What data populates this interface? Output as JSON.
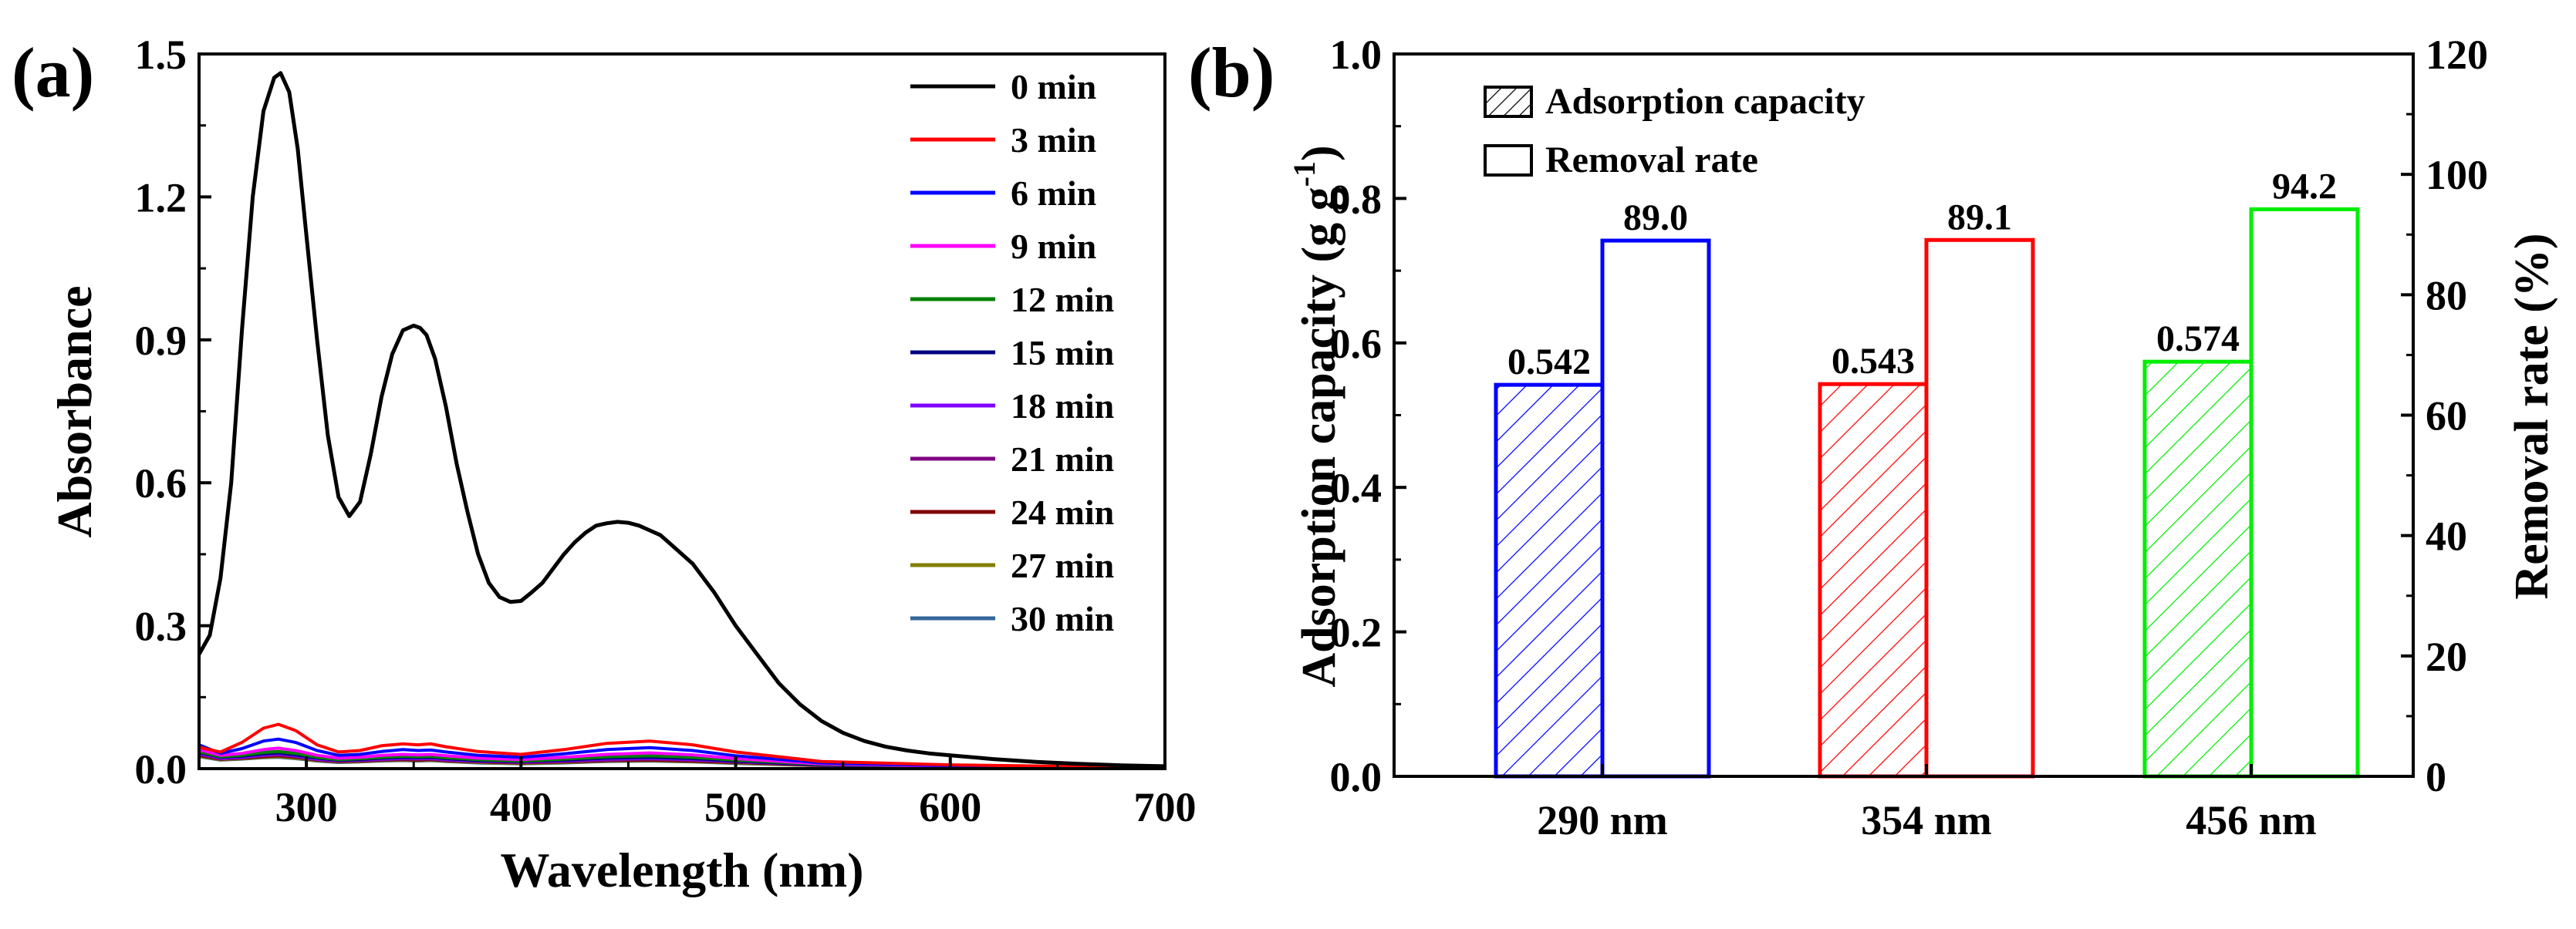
{
  "chart_data": [
    {
      "panel_label": "(a)",
      "type": "line",
      "title": "",
      "xlabel": "Wavelength (nm)",
      "ylabel": "Absorbance",
      "xlim": [
        250,
        700
      ],
      "ylim": [
        0,
        1.5
      ],
      "xticks": [
        "300",
        "400",
        "500",
        "600",
        "700"
      ],
      "xtick_values": [
        300,
        400,
        500,
        600,
        700
      ],
      "yticks": [
        "0.0",
        "0.3",
        "0.6",
        "0.9",
        "1.2",
        "1.5"
      ],
      "ytick_values": [
        0,
        0.3,
        0.6,
        0.9,
        1.2,
        1.5
      ],
      "grid": false,
      "legend_position": "top-right",
      "series": [
        {
          "name": "0 min",
          "color": "#000000",
          "x": [
            250,
            255,
            260,
            265,
            270,
            275,
            280,
            285,
            288,
            292,
            296,
            300,
            305,
            310,
            315,
            320,
            325,
            330,
            335,
            340,
            345,
            350,
            353,
            356,
            360,
            365,
            370,
            375,
            380,
            385,
            390,
            395,
            400,
            405,
            410,
            415,
            420,
            425,
            430,
            435,
            440,
            445,
            450,
            455,
            460,
            465,
            470,
            475,
            480,
            490,
            500,
            510,
            520,
            530,
            540,
            550,
            560,
            570,
            580,
            590,
            600,
            620,
            640,
            660,
            680,
            700
          ],
          "y": [
            0.24,
            0.28,
            0.4,
            0.6,
            0.92,
            1.2,
            1.38,
            1.45,
            1.46,
            1.42,
            1.3,
            1.12,
            0.9,
            0.7,
            0.57,
            0.53,
            0.56,
            0.66,
            0.78,
            0.87,
            0.92,
            0.93,
            0.925,
            0.91,
            0.86,
            0.76,
            0.64,
            0.54,
            0.45,
            0.39,
            0.36,
            0.35,
            0.352,
            0.37,
            0.39,
            0.42,
            0.45,
            0.475,
            0.495,
            0.51,
            0.515,
            0.518,
            0.516,
            0.51,
            0.5,
            0.49,
            0.47,
            0.45,
            0.43,
            0.37,
            0.3,
            0.24,
            0.18,
            0.135,
            0.1,
            0.075,
            0.058,
            0.046,
            0.038,
            0.032,
            0.028,
            0.02,
            0.014,
            0.01,
            0.007,
            0.005
          ]
        },
        {
          "name": "3 min",
          "color": "#ff0000",
          "x": [
            250,
            260,
            270,
            280,
            287,
            295,
            305,
            315,
            325,
            335,
            345,
            352,
            358,
            365,
            380,
            400,
            420,
            440,
            460,
            480,
            500,
            540,
            600,
            650,
            700
          ],
          "y": [
            0.045,
            0.035,
            0.055,
            0.085,
            0.093,
            0.08,
            0.05,
            0.035,
            0.038,
            0.048,
            0.052,
            0.05,
            0.052,
            0.046,
            0.036,
            0.03,
            0.04,
            0.053,
            0.058,
            0.05,
            0.035,
            0.015,
            0.008,
            0.005,
            0.004
          ]
        },
        {
          "name": "6 min",
          "color": "#0000ff",
          "x": [
            250,
            260,
            270,
            280,
            287,
            295,
            305,
            315,
            325,
            335,
            345,
            352,
            358,
            365,
            380,
            400,
            420,
            440,
            460,
            480,
            500,
            540,
            600,
            650,
            700
          ],
          "y": [
            0.05,
            0.032,
            0.042,
            0.058,
            0.062,
            0.055,
            0.038,
            0.028,
            0.03,
            0.036,
            0.04,
            0.038,
            0.039,
            0.035,
            0.028,
            0.024,
            0.031,
            0.04,
            0.044,
            0.038,
            0.027,
            0.012,
            0.006,
            0.004,
            0.003
          ]
        },
        {
          "name": "9 min",
          "color": "#ff00ff",
          "x": [
            250,
            260,
            270,
            280,
            287,
            295,
            305,
            315,
            325,
            335,
            345,
            352,
            358,
            365,
            380,
            400,
            420,
            440,
            460,
            480,
            500,
            540,
            600,
            650,
            700
          ],
          "y": [
            0.04,
            0.028,
            0.032,
            0.04,
            0.043,
            0.038,
            0.028,
            0.022,
            0.024,
            0.028,
            0.03,
            0.029,
            0.03,
            0.027,
            0.022,
            0.019,
            0.024,
            0.03,
            0.033,
            0.029,
            0.021,
            0.01,
            0.005,
            0.004,
            0.003
          ]
        },
        {
          "name": "12 min",
          "color": "#008000",
          "x": [
            250,
            260,
            270,
            280,
            287,
            295,
            305,
            315,
            325,
            335,
            345,
            352,
            358,
            365,
            380,
            400,
            420,
            440,
            460,
            480,
            500,
            540,
            600,
            650,
            700
          ],
          "y": [
            0.036,
            0.025,
            0.028,
            0.034,
            0.036,
            0.032,
            0.024,
            0.019,
            0.021,
            0.024,
            0.026,
            0.025,
            0.026,
            0.023,
            0.019,
            0.016,
            0.02,
            0.025,
            0.027,
            0.024,
            0.018,
            0.009,
            0.005,
            0.003,
            0.003
          ]
        },
        {
          "name": "15 min",
          "color": "#000080",
          "x": [
            250,
            260,
            270,
            280,
            287,
            295,
            305,
            315,
            325,
            335,
            345,
            352,
            358,
            365,
            380,
            400,
            420,
            440,
            460,
            480,
            500,
            540,
            600,
            650,
            700
          ],
          "y": [
            0.034,
            0.024,
            0.026,
            0.031,
            0.033,
            0.029,
            0.022,
            0.018,
            0.019,
            0.022,
            0.024,
            0.023,
            0.024,
            0.021,
            0.017,
            0.015,
            0.018,
            0.022,
            0.024,
            0.021,
            0.016,
            0.008,
            0.004,
            0.003,
            0.002
          ]
        },
        {
          "name": "18 min",
          "color": "#8000ff",
          "x": [
            250,
            260,
            270,
            280,
            287,
            295,
            305,
            315,
            325,
            335,
            345,
            352,
            358,
            365,
            380,
            400,
            420,
            440,
            460,
            480,
            500,
            540,
            600,
            650,
            700
          ],
          "y": [
            0.032,
            0.022,
            0.024,
            0.029,
            0.031,
            0.027,
            0.02,
            0.017,
            0.018,
            0.02,
            0.022,
            0.021,
            0.022,
            0.019,
            0.016,
            0.014,
            0.017,
            0.02,
            0.022,
            0.019,
            0.015,
            0.008,
            0.004,
            0.003,
            0.002
          ]
        },
        {
          "name": "21 min",
          "color": "#800080",
          "x": [
            250,
            260,
            270,
            280,
            287,
            295,
            305,
            315,
            325,
            335,
            345,
            352,
            358,
            365,
            380,
            400,
            420,
            440,
            460,
            480,
            500,
            540,
            600,
            650,
            700
          ],
          "y": [
            0.03,
            0.021,
            0.023,
            0.027,
            0.029,
            0.025,
            0.019,
            0.016,
            0.017,
            0.019,
            0.02,
            0.02,
            0.02,
            0.018,
            0.015,
            0.013,
            0.015,
            0.018,
            0.02,
            0.018,
            0.014,
            0.007,
            0.004,
            0.003,
            0.002
          ]
        },
        {
          "name": "24 min",
          "color": "#800000",
          "x": [
            250,
            260,
            270,
            280,
            287,
            295,
            305,
            315,
            325,
            335,
            345,
            352,
            358,
            365,
            380,
            400,
            420,
            440,
            460,
            480,
            500,
            540,
            600,
            650,
            700
          ],
          "y": [
            0.028,
            0.02,
            0.022,
            0.025,
            0.027,
            0.024,
            0.018,
            0.015,
            0.016,
            0.018,
            0.019,
            0.018,
            0.019,
            0.017,
            0.014,
            0.012,
            0.014,
            0.017,
            0.018,
            0.016,
            0.013,
            0.007,
            0.004,
            0.002,
            0.002
          ]
        },
        {
          "name": "27 min",
          "color": "#808000",
          "x": [
            250,
            260,
            270,
            280,
            287,
            295,
            305,
            315,
            325,
            335,
            345,
            352,
            358,
            365,
            380,
            400,
            420,
            440,
            460,
            480,
            500,
            540,
            600,
            650,
            700
          ],
          "y": [
            0.026,
            0.019,
            0.021,
            0.024,
            0.025,
            0.022,
            0.017,
            0.014,
            0.015,
            0.017,
            0.018,
            0.017,
            0.018,
            0.016,
            0.013,
            0.011,
            0.013,
            0.016,
            0.017,
            0.015,
            0.012,
            0.006,
            0.003,
            0.002,
            0.002
          ]
        },
        {
          "name": "30 min",
          "color": "#336699",
          "x": [
            250,
            260,
            270,
            280,
            287,
            295,
            305,
            315,
            325,
            335,
            345,
            352,
            358,
            365,
            380,
            400,
            420,
            440,
            460,
            480,
            500,
            540,
            600,
            650,
            700
          ],
          "y": [
            0.025,
            0.018,
            0.02,
            0.023,
            0.024,
            0.021,
            0.016,
            0.013,
            0.014,
            0.016,
            0.017,
            0.016,
            0.017,
            0.015,
            0.012,
            0.01,
            0.012,
            0.015,
            0.016,
            0.014,
            0.011,
            0.006,
            0.003,
            0.002,
            0.002
          ]
        }
      ]
    },
    {
      "panel_label": "(b)",
      "type": "bar",
      "title": "",
      "xlabel": "",
      "ylabel_left": "Adsorption capacity (g g",
      "ylabel_left_sup": "-1",
      "ylabel_left_end": ")",
      "ylabel_right": "Removal rate (%)",
      "categories": [
        "290 nm",
        "354 nm",
        "456 nm"
      ],
      "category_colors": [
        "#0000ff",
        "#ff0000",
        "#00ee00"
      ],
      "ylim_left": [
        0,
        1.0
      ],
      "ylim_right": [
        0,
        120
      ],
      "yticks_left": [
        "0.0",
        "0.2",
        "0.4",
        "0.6",
        "0.8",
        "1.0"
      ],
      "ytick_values_left": [
        0,
        0.2,
        0.4,
        0.6,
        0.8,
        1.0
      ],
      "yticks_right": [
        "0",
        "20",
        "40",
        "60",
        "80",
        "100",
        "120"
      ],
      "ytick_values_right": [
        0,
        20,
        40,
        60,
        80,
        100,
        120
      ],
      "grid": false,
      "legend_position": "top-left",
      "series": [
        {
          "name": "Adsorption capacity",
          "axis": "left",
          "pattern": "hatched",
          "values": [
            0.542,
            0.543,
            0.574
          ],
          "labels": [
            "0.542",
            "0.543",
            "0.574"
          ]
        },
        {
          "name": "Removal rate",
          "axis": "right",
          "pattern": "open",
          "values": [
            89.0,
            89.1,
            94.2
          ],
          "labels": [
            "89.0",
            "89.1",
            "94.2"
          ]
        }
      ]
    }
  ]
}
